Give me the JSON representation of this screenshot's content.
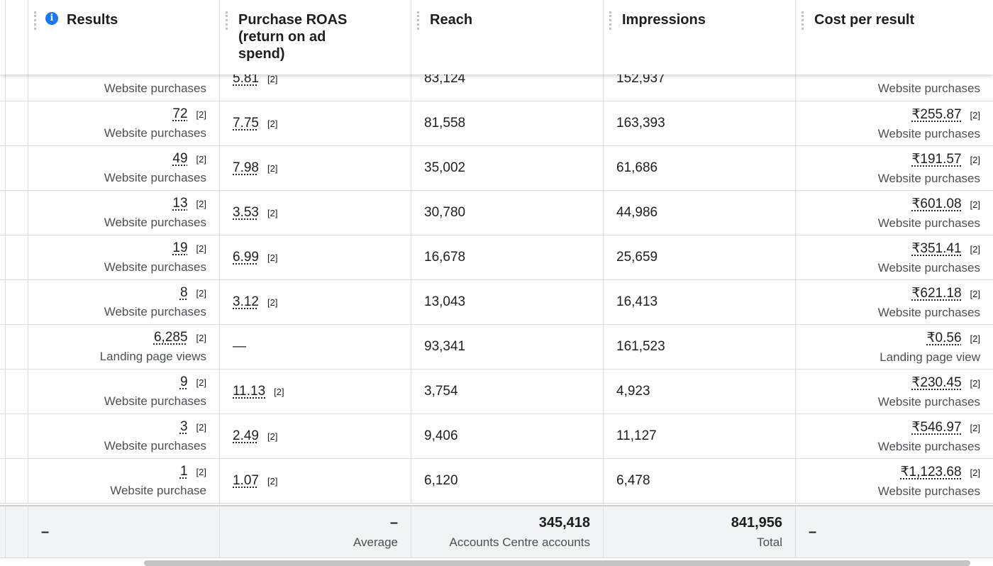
{
  "header": {
    "columns": [
      "Results",
      "Purchase ROAS (return on ad spend)",
      "Reach",
      "Impressions",
      "Cost per result"
    ]
  },
  "table": {
    "rows": [
      {
        "results": {
          "unit": "Website purchases"
        },
        "roas": {
          "value": "5.81",
          "note": "[2]"
        },
        "reach": "83,124",
        "impressions": "152,937",
        "cost": {
          "unit": "Website purchases"
        }
      },
      {
        "results": {
          "value": "72",
          "note": "[2]",
          "unit": "Website purchases"
        },
        "roas": {
          "value": "7.75",
          "note": "[2]"
        },
        "reach": "81,558",
        "impressions": "163,393",
        "cost": {
          "value": "₹255.87",
          "note": "[2]",
          "unit": "Website purchases"
        }
      },
      {
        "results": {
          "value": "49",
          "note": "[2]",
          "unit": "Website purchases"
        },
        "roas": {
          "value": "7.98",
          "note": "[2]"
        },
        "reach": "35,002",
        "impressions": "61,686",
        "cost": {
          "value": "₹191.57",
          "note": "[2]",
          "unit": "Website purchases"
        }
      },
      {
        "results": {
          "value": "13",
          "note": "[2]",
          "unit": "Website purchases"
        },
        "roas": {
          "value": "3.53",
          "note": "[2]"
        },
        "reach": "30,780",
        "impressions": "44,986",
        "cost": {
          "value": "₹601.08",
          "note": "[2]",
          "unit": "Website purchases"
        }
      },
      {
        "results": {
          "value": "19",
          "note": "[2]",
          "unit": "Website purchases"
        },
        "roas": {
          "value": "6.99",
          "note": "[2]"
        },
        "reach": "16,678",
        "impressions": "25,659",
        "cost": {
          "value": "₹351.41",
          "note": "[2]",
          "unit": "Website purchases"
        }
      },
      {
        "results": {
          "value": "8",
          "note": "[2]",
          "unit": "Website purchases"
        },
        "roas": {
          "value": "3.12",
          "note": "[2]"
        },
        "reach": "13,043",
        "impressions": "16,413",
        "cost": {
          "value": "₹621.18",
          "note": "[2]",
          "unit": "Website purchases"
        }
      },
      {
        "results": {
          "value": "6,285",
          "note": "[2]",
          "unit": "Landing page views"
        },
        "roas": {
          "value": "—"
        },
        "reach": "93,341",
        "impressions": "161,523",
        "cost": {
          "value": "₹0.56",
          "note": "[2]",
          "unit": "Landing page view"
        }
      },
      {
        "results": {
          "value": "9",
          "note": "[2]",
          "unit": "Website purchases"
        },
        "roas": {
          "value": "11.13",
          "note": "[2]"
        },
        "reach": "3,754",
        "impressions": "4,923",
        "cost": {
          "value": "₹230.45",
          "note": "[2]",
          "unit": "Website purchases"
        }
      },
      {
        "results": {
          "value": "3",
          "note": "[2]",
          "unit": "Website purchases"
        },
        "roas": {
          "value": "2.49",
          "note": "[2]"
        },
        "reach": "9,406",
        "impressions": "11,127",
        "cost": {
          "value": "₹546.97",
          "note": "[2]",
          "unit": "Website purchases"
        }
      },
      {
        "results": {
          "value": "1",
          "note": "[2]",
          "unit": "Website purchase"
        },
        "roas": {
          "value": "1.07",
          "note": "[2]"
        },
        "reach": "6,120",
        "impressions": "6,478",
        "cost": {
          "value": "₹1,123.68",
          "note": "[2]",
          "unit": "Website purchases"
        }
      }
    ]
  },
  "footer": {
    "results": "–",
    "roas": {
      "value": "–",
      "label": "Average"
    },
    "reach": {
      "value": "345,418",
      "label": "Accounts Centre accounts"
    },
    "impressions": {
      "value": "841,956",
      "label": "Total"
    },
    "cost": "–"
  }
}
